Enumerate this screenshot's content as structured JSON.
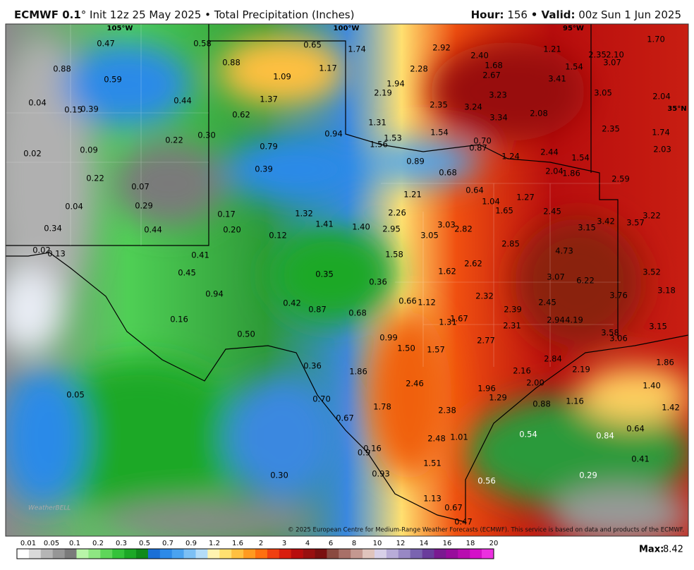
{
  "header": {
    "model": "ECMWF 0.1",
    "title": "° Init 12z 25 May 2025 • Total Precipitation (Inches)",
    "hour_label": "Hour:",
    "hour": "156",
    "valid_label": "• Valid:",
    "valid": "00z Sun 1 Jun 2025"
  },
  "map": {
    "graticule": [
      "105°W",
      "100°W",
      "95°W",
      "35°N"
    ],
    "labels": [
      "0.47",
      "0.58",
      "0.65",
      "1.74",
      "2.92",
      "1.21",
      "2.35",
      "2.10",
      "1.70",
      "0.88",
      "0.88",
      "1.17",
      "2.40",
      "1.68",
      "1.54",
      "3.07",
      "0.59",
      "1.09",
      "2.28",
      "2.67",
      "3.41",
      "1.94",
      "0.44",
      "1.37",
      "2.19",
      "3.23",
      "3.05",
      "2.04",
      "0.04",
      "0.15",
      "0.39",
      "0.62",
      "2.35",
      "3.24",
      "3.34",
      "2.08",
      "1.31",
      "2.35",
      "1.74",
      "0.30",
      "0.94",
      "1.53",
      "1.54",
      "0.70",
      "0.22",
      "1.56",
      "0.87",
      "0.79",
      "2.44",
      "2.03",
      "0.02",
      "0.09",
      "1.24",
      "1.54",
      "0.89",
      "0.39",
      "0.68",
      "2.04",
      "1.86",
      "2.59",
      "0.22",
      "0.07",
      "0.64",
      "1.21",
      "1.27",
      "1.04",
      "0.04",
      "0.29",
      "1.65",
      "2.45",
      "0.17",
      "1.32",
      "2.26",
      "3.22",
      "0.34",
      "0.44",
      "0.20",
      "1.41",
      "1.40",
      "2.95",
      "3.03",
      "2.82",
      "3.42",
      "3.57",
      "3.15",
      "0.12",
      "3.05",
      "2.85",
      "0.02",
      "0.13",
      "4.73",
      "1.58",
      "0.41",
      "2.62",
      "1.62",
      "0.45",
      "0.35",
      "3.07",
      "6.22",
      "3.52",
      "0.36",
      "3.18",
      "0.94",
      "2.32",
      "3.76",
      "0.66",
      "1.12",
      "0.42",
      "0.87",
      "2.45",
      "2.39",
      "0.68",
      "0.16",
      "2.94",
      "4.19",
      "1.31",
      "1.67",
      "2.31",
      "3.15",
      "0.50",
      "3.58",
      "3.06",
      "0.99",
      "2.77",
      "1.50",
      "1.57",
      "2.84",
      "1.86",
      "0.36",
      "2.16",
      "2.19",
      "1.86",
      "2.46",
      "2.00",
      "1.40",
      "1.96",
      "0.05",
      "1.29",
      "0.88",
      "1.16",
      "0.70",
      "1.78",
      "1.42",
      "2.38",
      "0.67",
      "0.64",
      "0.54",
      "2.48",
      "1.01",
      "0.84",
      "0.16",
      "0.9",
      "0.41",
      "1.51",
      "0.93",
      "0.30",
      "0.29",
      "0.56",
      "1.13",
      "0.67",
      "0.47"
    ],
    "logo": "WeatherBELL",
    "credit": "© 2025 European Centre for Medium-Range Weather Forecasts (ECMWF). This service is based on data and products of the ECMWF."
  },
  "colorbar": {
    "labels": [
      "0.01",
      "0.05",
      "0.1",
      "0.2",
      "0.3",
      "0.5",
      "0.7",
      "0.9",
      "1.2",
      "1.6",
      "2",
      "3",
      "4",
      "6",
      "8",
      "10",
      "12",
      "14",
      "16",
      "18",
      "20"
    ],
    "colors": [
      "#ffffff",
      "#d9d9d9",
      "#b5b5b5",
      "#969696",
      "#7a7a7a",
      "#b8f5a8",
      "#8ee682",
      "#5fd65a",
      "#34c23a",
      "#1ca826",
      "#0f8a1a",
      "#1a6fd6",
      "#2c8ae8",
      "#4aa3f0",
      "#7cc0f5",
      "#b4dcf8",
      "#fff3b0",
      "#ffe070",
      "#ffc040",
      "#ff9a20",
      "#ff7010",
      "#f04010",
      "#d81e0e",
      "#b80d0d",
      "#981010",
      "#7a1010",
      "#8a4a40",
      "#a87068",
      "#c49890",
      "#e0c4bc",
      "#d8d0e8",
      "#b8acd8",
      "#9888c4",
      "#7a64b0",
      "#6a3c9c",
      "#7a1a90",
      "#980c9c",
      "#b80cb0",
      "#d410c8",
      "#ec30e0"
    ]
  },
  "max": {
    "label": "Max:",
    "value": "8.42"
  }
}
